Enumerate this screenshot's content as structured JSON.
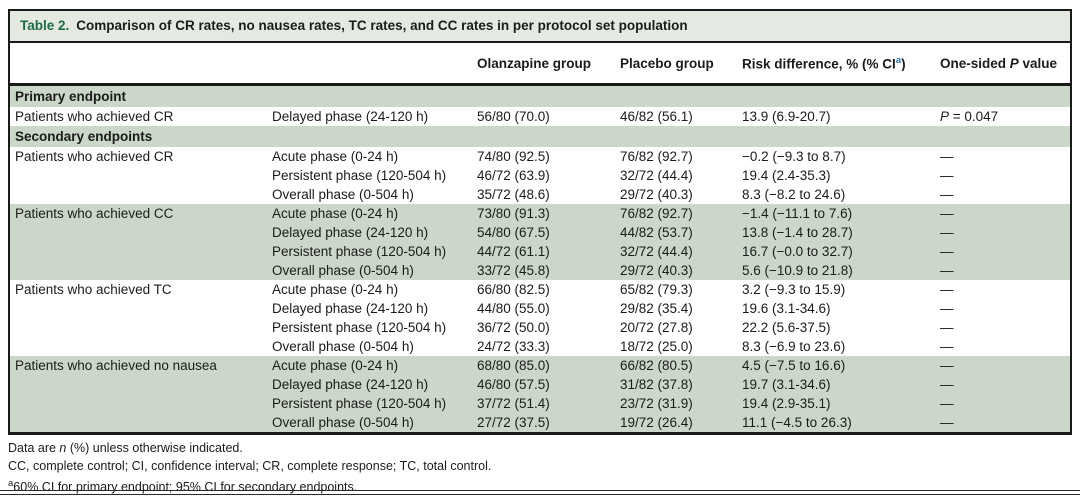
{
  "title": {
    "label": "Table 2.",
    "text": "Comparison of CR rates, no nausea rates, TC rates, and CC rates in per protocol set population"
  },
  "colors": {
    "band_green": "#cbd7c9",
    "title_bg": "#e4eae1",
    "table_label_green": "#1e6b43",
    "superscript_blue": "#2d6fb0"
  },
  "header": {
    "olanzapine": "Olanzapine group",
    "placebo": "Placebo group",
    "risk_pre": "Risk difference, % (% CI",
    "risk_sup": "a",
    "risk_post": ")",
    "pvalue_pre": "One-sided ",
    "pvalue_italic": "P",
    "pvalue_post": " value"
  },
  "rows": [
    {
      "type": "section",
      "label": "Primary endpoint"
    },
    {
      "type": "data",
      "shade": false,
      "endpoint": "Patients who achieved CR",
      "phase": "Delayed phase (24-120 h)",
      "olanzapine": "56/80 (70.0)",
      "placebo": "46/82 (56.1)",
      "risk": "13.9 (6.9-20.7)",
      "p": {
        "italic": "P",
        "rest": " = 0.047"
      }
    },
    {
      "type": "section",
      "label": "Secondary endpoints"
    },
    {
      "type": "data",
      "shade": false,
      "endpoint": "Patients who achieved CR",
      "phase": "Acute phase (0-24 h)",
      "olanzapine": "74/80 (92.5)",
      "placebo": "76/82 (92.7)",
      "risk": "−0.2 (−9.3 to 8.7)",
      "p": "—"
    },
    {
      "type": "data",
      "shade": false,
      "endpoint": "",
      "phase": "Persistent phase (120-504 h)",
      "olanzapine": "46/72 (63.9)",
      "placebo": "32/72 (44.4)",
      "risk": "19.4 (2.4-35.3)",
      "p": "—"
    },
    {
      "type": "data",
      "shade": false,
      "endpoint": "",
      "phase": "Overall phase (0-504 h)",
      "olanzapine": "35/72 (48.6)",
      "placebo": "29/72 (40.3)",
      "risk": "8.3 (−8.2 to 24.6)",
      "p": "—"
    },
    {
      "type": "data",
      "shade": true,
      "endpoint": "Patients who achieved CC",
      "phase": "Acute phase (0-24 h)",
      "olanzapine": "73/80 (91.3)",
      "placebo": "76/82 (92.7)",
      "risk": "−1.4 (−11.1 to 7.6)",
      "p": "—"
    },
    {
      "type": "data",
      "shade": true,
      "endpoint": "",
      "phase": "Delayed phase (24-120 h)",
      "olanzapine": "54/80 (67.5)",
      "placebo": "44/82 (53.7)",
      "risk": "13.8 (−1.4 to 28.7)",
      "p": "—"
    },
    {
      "type": "data",
      "shade": true,
      "endpoint": "",
      "phase": "Persistent phase (120-504 h)",
      "olanzapine": "44/72 (61.1)",
      "placebo": "32/72 (44.4)",
      "risk": "16.7 (−0.0 to 32.7)",
      "p": "—"
    },
    {
      "type": "data",
      "shade": true,
      "endpoint": "",
      "phase": "Overall phase (0-504 h)",
      "olanzapine": "33/72 (45.8)",
      "placebo": "29/72 (40.3)",
      "risk": "5.6 (−10.9 to 21.8)",
      "p": "—"
    },
    {
      "type": "data",
      "shade": false,
      "endpoint": "Patients who achieved TC",
      "phase": "Acute phase (0-24 h)",
      "olanzapine": "66/80 (82.5)",
      "placebo": "65/82 (79.3)",
      "risk": "3.2 (−9.3 to 15.9)",
      "p": "—"
    },
    {
      "type": "data",
      "shade": false,
      "endpoint": "",
      "phase": "Delayed phase (24-120 h)",
      "olanzapine": "44/80 (55.0)",
      "placebo": "29/82 (35.4)",
      "risk": "19.6 (3.1-34.6)",
      "p": "—"
    },
    {
      "type": "data",
      "shade": false,
      "endpoint": "",
      "phase": "Persistent phase (120-504 h)",
      "olanzapine": "36/72 (50.0)",
      "placebo": "20/72 (27.8)",
      "risk": "22.2 (5.6-37.5)",
      "p": "—"
    },
    {
      "type": "data",
      "shade": false,
      "endpoint": "",
      "phase": "Overall phase (0-504 h)",
      "olanzapine": "24/72 (33.3)",
      "placebo": "18/72 (25.0)",
      "risk": "8.3 (−6.9 to 23.6)",
      "p": "—"
    },
    {
      "type": "data",
      "shade": true,
      "endpoint": "Patients who achieved no nausea",
      "phase": "Acute phase (0-24 h)",
      "olanzapine": "68/80 (85.0)",
      "placebo": "66/82 (80.5)",
      "risk": "4.5 (−7.5 to 16.6)",
      "p": "—"
    },
    {
      "type": "data",
      "shade": true,
      "endpoint": "",
      "phase": "Delayed phase (24-120 h)",
      "olanzapine": "46/80 (57.5)",
      "placebo": "31/82 (37.8)",
      "risk": "19.7 (3.1-34.6)",
      "p": "—"
    },
    {
      "type": "data",
      "shade": true,
      "endpoint": "",
      "phase": "Persistent phase (120-504 h)",
      "olanzapine": "37/72 (51.4)",
      "placebo": "23/72 (31.9)",
      "risk": "19.4 (2.9-35.1)",
      "p": "—"
    },
    {
      "type": "data",
      "shade": true,
      "endpoint": "",
      "phase": "Overall phase (0-504 h)",
      "olanzapine": "27/72 (37.5)",
      "placebo": "19/72 (26.4)",
      "risk": "11.1 (−4.5 to 26.3)",
      "p": "—"
    }
  ],
  "footnotes": [
    {
      "pre": "Data are ",
      "italic": "n",
      "post": " (%) unless otherwise indicated."
    },
    {
      "pre": "CC, complete control; CI, confidence interval; CR, complete response; TC, total control."
    },
    {
      "sup": "a",
      "pre": "60% CI for primary endpoint; 95% CI for secondary endpoints."
    }
  ]
}
